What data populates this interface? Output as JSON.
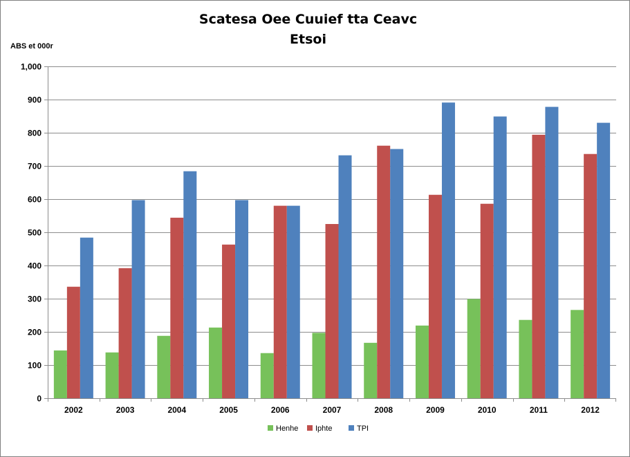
{
  "chart_data": {
    "type": "bar",
    "title": "Scatesa Oee Cuuief tta Ceavc",
    "subtitle": "Etsoi",
    "xlabel": "",
    "ylabel": "ABS et 000r",
    "ylim": [
      0,
      1000
    ],
    "yticks": [
      "0",
      "100",
      "200",
      "300",
      "400",
      "500",
      "600",
      "700",
      "800",
      "900",
      "1,000"
    ],
    "categories": [
      "2002",
      "2003",
      "2004",
      "2005",
      "2006",
      "2007",
      "2008",
      "2009",
      "2010",
      "2011",
      "2012"
    ],
    "series": [
      {
        "name": "Henhe",
        "color": "#77c15a",
        "values": [
          144,
          138,
          188,
          213,
          136,
          197,
          167,
          219,
          299,
          236,
          266
        ]
      },
      {
        "name": "Iphte",
        "color": "#c0504d",
        "values": [
          336,
          392,
          544,
          463,
          580,
          525,
          761,
          613,
          586,
          794,
          736
        ]
      },
      {
        "name": "TPI",
        "color": "#4f81bd",
        "values": [
          484,
          597,
          684,
          597,
          580,
          732,
          751,
          891,
          849,
          878,
          830
        ]
      }
    ],
    "grid": true,
    "legend": "bottom"
  }
}
